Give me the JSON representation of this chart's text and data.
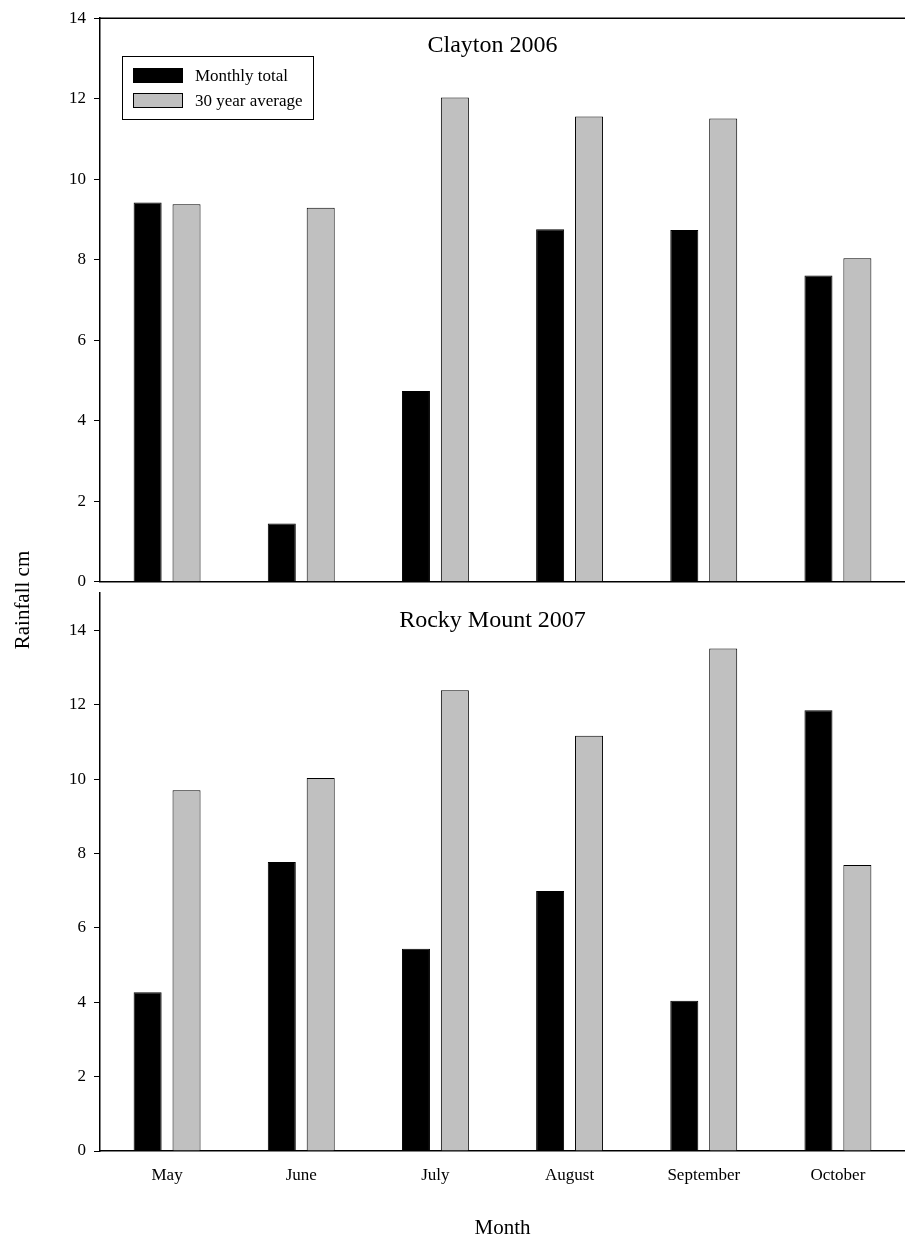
{
  "chart_data": [
    {
      "type": "bar",
      "title": "Clayton 2006",
      "ylabel": "Rainfall cm",
      "categories": [
        null,
        null,
        null,
        null,
        null,
        null
      ],
      "series": [
        {
          "name": "Monthly total",
          "color": "#000000",
          "values": [
            9.42,
            1.45,
            4.74,
            8.76,
            8.74,
            7.61
          ]
        },
        {
          "name": "30 year average",
          "color": "#c0c0c0",
          "values": [
            9.38,
            9.29,
            12.03,
            11.56,
            11.51,
            8.04
          ]
        }
      ],
      "ylim": [
        0,
        14
      ],
      "yticks": [
        0,
        2,
        4,
        6,
        8,
        10,
        12,
        14
      ],
      "tick_labels": "y",
      "legend": "top left"
    },
    {
      "type": "bar",
      "title": "Rocky Mount 2007",
      "xlabel": "Month",
      "categories": [
        "May",
        "June",
        "July",
        "August",
        "September",
        "October"
      ],
      "series": [
        {
          "color": "#000000",
          "values": [
            4.27,
            7.77,
            5.44,
            6.99,
            4.04,
            11.85
          ]
        },
        {
          "color": "#c0c0c0",
          "values": [
            9.7,
            10.03,
            12.39,
            11.17,
            13.51,
            7.69
          ]
        }
      ],
      "ylim": [
        0,
        15
      ],
      "yticks": [
        0,
        2,
        4,
        6,
        8,
        10,
        12,
        14
      ]
    }
  ]
}
